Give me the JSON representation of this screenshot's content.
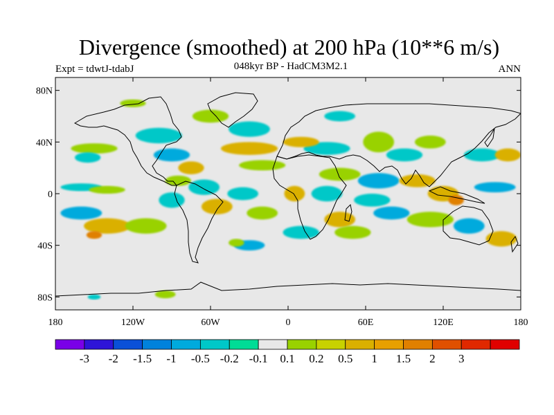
{
  "title": "Divergence (smoothed) at 200 hPa (10**6 m/s)",
  "subtitle": "048kyr BP - HadCM3M2.1",
  "experiment": "Expt = tdwtJ-tdabJ",
  "season": "ANN",
  "map": {
    "lon_range": [
      -180,
      180
    ],
    "lat_range": [
      -90,
      90
    ],
    "x_ticks": [
      {
        "value": -180,
        "label": "180"
      },
      {
        "value": -120,
        "label": "120W"
      },
      {
        "value": -60,
        "label": "60W"
      },
      {
        "value": 0,
        "label": "0"
      },
      {
        "value": 60,
        "label": "60E"
      },
      {
        "value": 120,
        "label": "120E"
      },
      {
        "value": 180,
        "label": "180"
      }
    ],
    "y_ticks": [
      {
        "value": 80,
        "label": "80N"
      },
      {
        "value": 40,
        "label": "40N"
      },
      {
        "value": 0,
        "label": "0"
      },
      {
        "value": -40,
        "label": "40S"
      },
      {
        "value": -80,
        "label": "80S"
      }
    ],
    "background_color": "#e8e8e8",
    "blobs": [
      {
        "lon": -150,
        "lat": 35,
        "rx": 18,
        "ry": 4,
        "c": "#99d200"
      },
      {
        "lon": -155,
        "lat": 28,
        "rx": 10,
        "ry": 4,
        "c": "#00c8c8"
      },
      {
        "lon": -100,
        "lat": 45,
        "rx": 18,
        "ry": 6,
        "c": "#00c8c8"
      },
      {
        "lon": -90,
        "lat": 30,
        "rx": 14,
        "ry": 5,
        "c": "#00aadd"
      },
      {
        "lon": -75,
        "lat": 20,
        "rx": 10,
        "ry": 5,
        "c": "#dab000"
      },
      {
        "lon": -85,
        "lat": 10,
        "rx": 10,
        "ry": 4,
        "c": "#99d200"
      },
      {
        "lon": -65,
        "lat": 5,
        "rx": 12,
        "ry": 6,
        "c": "#00c8c8"
      },
      {
        "lon": -55,
        "lat": -10,
        "rx": 12,
        "ry": 6,
        "c": "#dab000"
      },
      {
        "lon": -160,
        "lat": 5,
        "rx": 16,
        "ry": 3,
        "c": "#00c8c8"
      },
      {
        "lon": -140,
        "lat": 3,
        "rx": 14,
        "ry": 3,
        "c": "#99d200"
      },
      {
        "lon": -160,
        "lat": -15,
        "rx": 16,
        "ry": 5,
        "c": "#00aadd"
      },
      {
        "lon": -140,
        "lat": -25,
        "rx": 18,
        "ry": 6,
        "c": "#dab000"
      },
      {
        "lon": -150,
        "lat": -32,
        "rx": 6,
        "ry": 3,
        "c": "#e08000"
      },
      {
        "lon": -110,
        "lat": -25,
        "rx": 16,
        "ry": 6,
        "c": "#99d200"
      },
      {
        "lon": -90,
        "lat": -5,
        "rx": 10,
        "ry": 6,
        "c": "#00c8c8"
      },
      {
        "lon": -30,
        "lat": 50,
        "rx": 16,
        "ry": 6,
        "c": "#00c8c8"
      },
      {
        "lon": -30,
        "lat": 35,
        "rx": 22,
        "ry": 5,
        "c": "#dab000"
      },
      {
        "lon": -20,
        "lat": 22,
        "rx": 18,
        "ry": 4,
        "c": "#99d200"
      },
      {
        "lon": -60,
        "lat": 60,
        "rx": 14,
        "ry": 5,
        "c": "#99d200"
      },
      {
        "lon": -35,
        "lat": 0,
        "rx": 12,
        "ry": 5,
        "c": "#00c8c8"
      },
      {
        "lon": -20,
        "lat": -15,
        "rx": 12,
        "ry": 5,
        "c": "#99d200"
      },
      {
        "lon": -30,
        "lat": -40,
        "rx": 12,
        "ry": 4,
        "c": "#00aadd"
      },
      {
        "lon": 10,
        "lat": -30,
        "rx": 14,
        "ry": 5,
        "c": "#00c8c8"
      },
      {
        "lon": 5,
        "lat": 0,
        "rx": 8,
        "ry": 6,
        "c": "#dab000"
      },
      {
        "lon": 30,
        "lat": 35,
        "rx": 18,
        "ry": 5,
        "c": "#00c8c8"
      },
      {
        "lon": 10,
        "lat": 40,
        "rx": 14,
        "ry": 4,
        "c": "#dab000"
      },
      {
        "lon": 40,
        "lat": 15,
        "rx": 16,
        "ry": 5,
        "c": "#99d200"
      },
      {
        "lon": 30,
        "lat": 0,
        "rx": 12,
        "ry": 6,
        "c": "#00c8c8"
      },
      {
        "lon": 40,
        "lat": -20,
        "rx": 12,
        "ry": 6,
        "c": "#dab000"
      },
      {
        "lon": 50,
        "lat": -30,
        "rx": 14,
        "ry": 5,
        "c": "#99d200"
      },
      {
        "lon": 70,
        "lat": 10,
        "rx": 16,
        "ry": 6,
        "c": "#00aadd"
      },
      {
        "lon": 65,
        "lat": -5,
        "rx": 14,
        "ry": 5,
        "c": "#00c8c8"
      },
      {
        "lon": 80,
        "lat": -15,
        "rx": 14,
        "ry": 5,
        "c": "#00aadd"
      },
      {
        "lon": 70,
        "lat": 40,
        "rx": 12,
        "ry": 8,
        "c": "#99d200"
      },
      {
        "lon": 90,
        "lat": 30,
        "rx": 14,
        "ry": 5,
        "c": "#00c8c8"
      },
      {
        "lon": 110,
        "lat": 40,
        "rx": 12,
        "ry": 5,
        "c": "#99d200"
      },
      {
        "lon": 100,
        "lat": 10,
        "rx": 14,
        "ry": 5,
        "c": "#dab000"
      },
      {
        "lon": 120,
        "lat": 0,
        "rx": 12,
        "ry": 6,
        "c": "#dab000"
      },
      {
        "lon": 130,
        "lat": -5,
        "rx": 6,
        "ry": 4,
        "c": "#e08000"
      },
      {
        "lon": 110,
        "lat": -20,
        "rx": 18,
        "ry": 6,
        "c": "#99d200"
      },
      {
        "lon": 140,
        "lat": -25,
        "rx": 12,
        "ry": 6,
        "c": "#00aadd"
      },
      {
        "lon": 160,
        "lat": 5,
        "rx": 16,
        "ry": 4,
        "c": "#00aadd"
      },
      {
        "lon": 165,
        "lat": -35,
        "rx": 12,
        "ry": 6,
        "c": "#dab000"
      },
      {
        "lon": 150,
        "lat": 30,
        "rx": 14,
        "ry": 5,
        "c": "#00c8c8"
      },
      {
        "lon": 170,
        "lat": 30,
        "rx": 10,
        "ry": 5,
        "c": "#dab000"
      },
      {
        "lon": -95,
        "lat": -78,
        "rx": 8,
        "ry": 3,
        "c": "#99d200"
      },
      {
        "lon": -150,
        "lat": -80,
        "rx": 5,
        "ry": 2,
        "c": "#00c8c8"
      },
      {
        "lon": -40,
        "lat": -38,
        "rx": 6,
        "ry": 3,
        "c": "#99d200"
      },
      {
        "lon": 40,
        "lat": 60,
        "rx": 12,
        "ry": 4,
        "c": "#00c8c8"
      },
      {
        "lon": -120,
        "lat": 70,
        "rx": 10,
        "ry": 3,
        "c": "#99d200"
      }
    ]
  },
  "colorbar": {
    "colors": [
      "#7a00e8",
      "#2e14d8",
      "#0a50d8",
      "#0082dc",
      "#00aadd",
      "#00c8c8",
      "#00dc96",
      "#e8e8e8",
      "#99d200",
      "#c8d200",
      "#dab000",
      "#e8a000",
      "#e08000",
      "#e05000",
      "#e02800",
      "#e00000"
    ],
    "labels": [
      "-3",
      "-2",
      "-1.5",
      "-1",
      "-0.5",
      "-0.2",
      "-0.1",
      "0.1",
      "0.2",
      "0.5",
      "1",
      "1.5",
      "2",
      "3"
    ]
  }
}
